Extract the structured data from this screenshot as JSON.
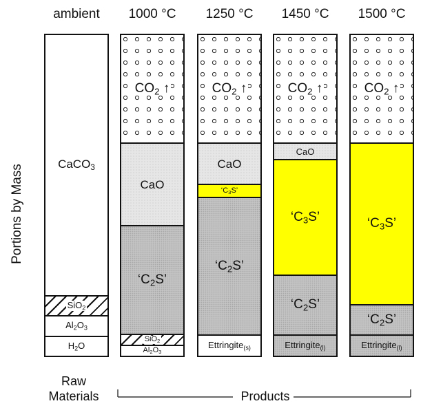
{
  "headers": {
    "ambient": "ambient",
    "t1000": "1000 °C",
    "t1250": "1250 °C",
    "t1450": "1450 °C",
    "t1500": "1500 °C"
  },
  "y_axis_label": "Portions by Mass",
  "footer": {
    "raw_line1": "Raw",
    "raw_line2": "Materials",
    "products": "Products"
  },
  "columns": {
    "raw": {
      "caco3": "CaCO3",
      "sio2": "SiO2",
      "al2o3": "Al2O3",
      "h2o": "H2O"
    },
    "c1000": {
      "co2": "CO2 ↑",
      "cao": "CaO",
      "c2s": "‘C2S’",
      "sio2": "SiO2",
      "al2o3": "Al2O3"
    },
    "c1250": {
      "co2": "CO2 ↑",
      "cao": "CaO",
      "c3s": "‘C3S’",
      "c2s": "‘C2S’",
      "ettringite": "Ettringite(s)"
    },
    "c1450": {
      "co2": "CO2 ↑",
      "cao": "CaO",
      "c3s": "‘C3S’",
      "c2s": "‘C2S’",
      "ettringite": "Ettringite(l)"
    },
    "c1500": {
      "co2": "CO2 ↑",
      "c3s": "‘C3S’",
      "c2s": "‘C2S’",
      "ettringite": "Ettringite(l)"
    }
  },
  "colors": {
    "co2_fill": "#ffffff",
    "cao_fill": "#e6e6e6",
    "c2s_fill": "#c3c3c3",
    "c3s_fill": "#ffff00",
    "border": "#111111"
  }
}
